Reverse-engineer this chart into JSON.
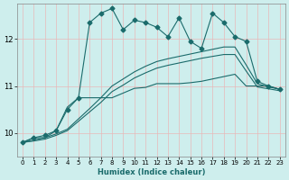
{
  "xlabel": "Humidex (Indice chaleur)",
  "background_color": "#ceeeed",
  "line_color": "#1a6b6b",
  "grid_color_v": "#e8b8b8",
  "grid_color_h": "#e8b8b8",
  "xlim": [
    -0.5,
    23.5
  ],
  "ylim": [
    9.5,
    12.75
  ],
  "yticks": [
    10,
    11,
    12
  ],
  "xticks": [
    0,
    1,
    2,
    3,
    4,
    5,
    6,
    7,
    8,
    9,
    10,
    11,
    12,
    13,
    14,
    15,
    16,
    17,
    18,
    19,
    20,
    21,
    22,
    23
  ],
  "line_main_x": [
    0,
    1,
    2,
    3,
    4,
    5,
    6,
    7,
    8,
    9,
    10,
    11,
    12,
    13,
    14,
    15,
    16,
    17,
    18,
    19,
    20,
    21,
    22,
    23
  ],
  "line_main_y": [
    9.8,
    9.9,
    9.95,
    10.05,
    10.5,
    10.75,
    12.35,
    12.55,
    12.65,
    12.2,
    12.4,
    12.35,
    12.25,
    12.05,
    12.45,
    11.95,
    11.8,
    12.55,
    12.35,
    12.05,
    11.95,
    11.1,
    11.0,
    10.93
  ],
  "line_flat_x": [
    0,
    1,
    2,
    3,
    4,
    5,
    6,
    7,
    8,
    9,
    10,
    11,
    12,
    13,
    14,
    15,
    16,
    17,
    18,
    19,
    20,
    21,
    22,
    23
  ],
  "line_flat_y": [
    9.8,
    9.9,
    9.9,
    10.05,
    10.55,
    10.75,
    10.75,
    10.75,
    10.75,
    10.85,
    10.95,
    10.97,
    11.05,
    11.05,
    11.05,
    11.07,
    11.1,
    11.15,
    11.2,
    11.25,
    11.0,
    11.0,
    11.0,
    10.93
  ],
  "line_diag1_x": [
    0,
    1,
    2,
    3,
    4,
    5,
    6,
    7,
    8,
    9,
    10,
    11,
    12,
    13,
    14,
    15,
    16,
    17,
    18,
    19,
    20,
    21,
    22,
    23
  ],
  "line_diag1_y": [
    9.8,
    9.85,
    9.9,
    9.98,
    10.08,
    10.3,
    10.52,
    10.75,
    11.0,
    11.15,
    11.3,
    11.42,
    11.52,
    11.58,
    11.63,
    11.68,
    11.73,
    11.78,
    11.83,
    11.83,
    11.45,
    11.05,
    10.98,
    10.93
  ],
  "line_diag2_x": [
    0,
    1,
    2,
    3,
    4,
    5,
    6,
    7,
    8,
    9,
    10,
    11,
    12,
    13,
    14,
    15,
    16,
    17,
    18,
    19,
    20,
    21,
    22,
    23
  ],
  "line_diag2_y": [
    9.8,
    9.83,
    9.87,
    9.95,
    10.05,
    10.25,
    10.45,
    10.65,
    10.88,
    11.02,
    11.17,
    11.28,
    11.38,
    11.44,
    11.49,
    11.54,
    11.59,
    11.63,
    11.67,
    11.67,
    11.32,
    10.98,
    10.94,
    10.9
  ]
}
